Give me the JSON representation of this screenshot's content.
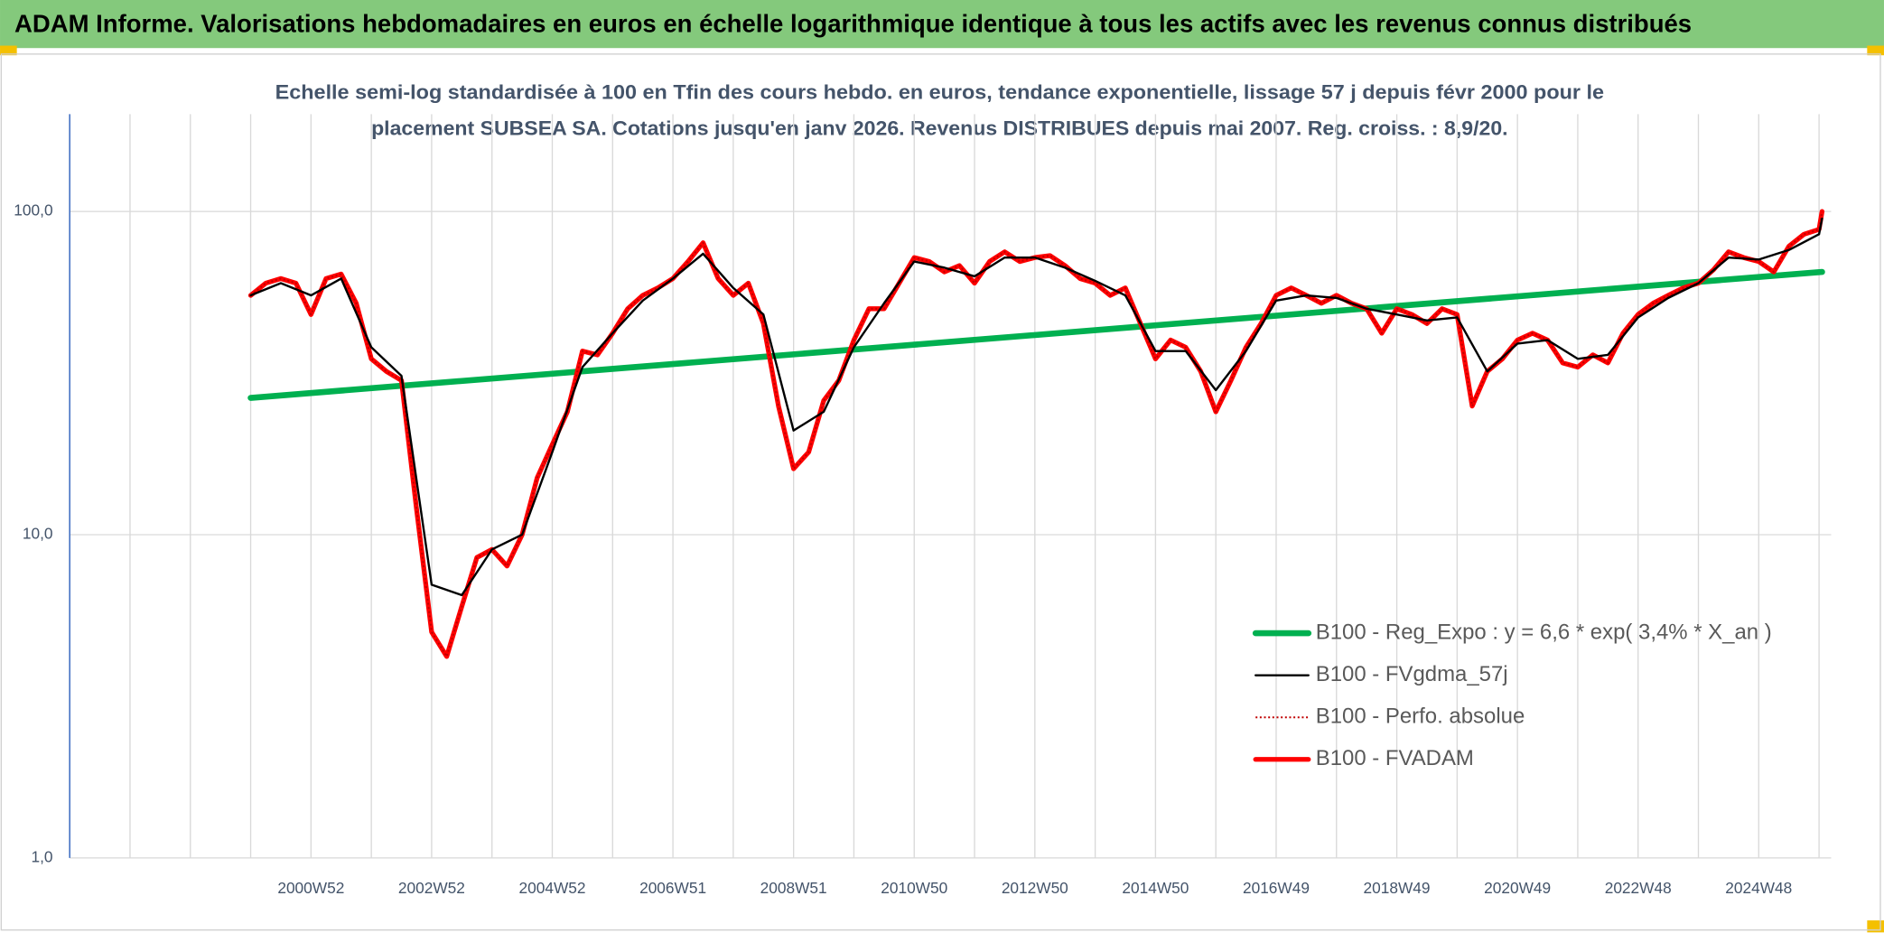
{
  "chart_data": {
    "type": "line",
    "title": "ADAM Informe. Valorisations hebdomadaires en euros en échelle logarithmique identique à tous les actifs avec les revenus connus distribués",
    "subtitle": [
      "Echelle semi-log standardisée à 100 en Tfin des cours hebdo. en euros, tendance exponentielle, lissage 57 j depuis févr 2000 pour le",
      "placement SUBSEA SA. Cotations jusqu'en janv 2026. Revenus DISTRIBUES depuis mai 2007. Reg. croiss. : 8,9/20."
    ],
    "y_log": true,
    "ylim": [
      1,
      200
    ],
    "yticks": [
      {
        "value": 1,
        "label": "1,0"
      },
      {
        "value": 10,
        "label": "10,0"
      },
      {
        "value": 100,
        "label": "100,0"
      }
    ],
    "xlim": [
      1997,
      2026.2
    ],
    "xticks": [
      {
        "value": 2001,
        "label": "2000W52"
      },
      {
        "value": 2003,
        "label": "2002W52"
      },
      {
        "value": 2005,
        "label": "2004W52"
      },
      {
        "value": 2007,
        "label": "2006W51"
      },
      {
        "value": 2009,
        "label": "2008W51"
      },
      {
        "value": 2011,
        "label": "2010W50"
      },
      {
        "value": 2013,
        "label": "2012W50"
      },
      {
        "value": 2015,
        "label": "2014W50"
      },
      {
        "value": 2017,
        "label": "2016W49"
      },
      {
        "value": 2019,
        "label": "2018W49"
      },
      {
        "value": 2021,
        "label": "2020W49"
      },
      {
        "value": 2023,
        "label": "2022W48"
      },
      {
        "value": 2025,
        "label": "2024W48"
      }
    ],
    "x_minor_ticks": [
      1998,
      1999,
      2000,
      2002,
      2004,
      2006,
      2008,
      2010,
      2012,
      2014,
      2016,
      2018,
      2020,
      2022,
      2024,
      2026
    ],
    "grid": true,
    "legend": "lower right",
    "x": [
      2000,
      2000.25,
      2000.5,
      2000.75,
      2001,
      2001.25,
      2001.5,
      2001.75,
      2002,
      2002.25,
      2002.5,
      2002.75,
      2003,
      2003.25,
      2003.5,
      2003.75,
      2004,
      2004.25,
      2004.5,
      2004.75,
      2005,
      2005.25,
      2005.5,
      2005.75,
      2006,
      2006.25,
      2006.5,
      2006.75,
      2007,
      2007.25,
      2007.5,
      2007.75,
      2008,
      2008.25,
      2008.5,
      2008.75,
      2009,
      2009.25,
      2009.5,
      2009.75,
      2010,
      2010.25,
      2010.5,
      2010.75,
      2011,
      2011.25,
      2011.5,
      2011.75,
      2012,
      2012.25,
      2012.5,
      2012.75,
      2013,
      2013.25,
      2013.5,
      2013.75,
      2014,
      2014.25,
      2014.5,
      2014.75,
      2015,
      2015.25,
      2015.5,
      2015.75,
      2016,
      2016.25,
      2016.5,
      2016.75,
      2017,
      2017.25,
      2017.5,
      2017.75,
      2018,
      2018.25,
      2018.5,
      2018.75,
      2019,
      2019.25,
      2019.5,
      2019.75,
      2020,
      2020.25,
      2020.5,
      2020.75,
      2021,
      2021.25,
      2021.5,
      2021.75,
      2022,
      2022.25,
      2022.5,
      2022.75,
      2023,
      2023.25,
      2023.5,
      2023.75,
      2024,
      2024.25,
      2024.5,
      2024.75,
      2025,
      2025.25,
      2025.5,
      2025.75,
      2026,
      2026.05
    ],
    "series": [
      {
        "name": "B100 - Reg_Expo : y = 6,6 * exp( 3,4% *  X_an )",
        "color": "#00b050",
        "x": [
          2000,
          2026.05
        ],
        "values": [
          26.5,
          65
        ]
      },
      {
        "name": "B100 - FVgdma_57j",
        "color": "#000000",
        "x": [
          2000,
          2000.5,
          2001,
          2001.5,
          2002,
          2002.5,
          2003,
          2003.5,
          2004,
          2004.5,
          2005,
          2005.5,
          2006,
          2006.5,
          2007,
          2007.5,
          2008,
          2008.5,
          2009,
          2009.5,
          2010,
          2010.5,
          2011,
          2011.5,
          2012,
          2012.5,
          2013,
          2013.5,
          2014,
          2014.5,
          2015,
          2015.5,
          2016,
          2016.5,
          2017,
          2017.5,
          2018,
          2018.5,
          2019,
          2019.5,
          2020,
          2020.5,
          2021,
          2021.5,
          2022,
          2022.5,
          2023,
          2023.5,
          2024,
          2024.5,
          2025,
          2025.5,
          2026,
          2026.05
        ],
        "values": [
          55,
          60,
          55,
          62,
          38,
          31,
          7,
          6.5,
          9,
          10,
          18,
          33,
          42,
          53,
          62,
          74,
          58,
          48,
          21,
          24,
          38,
          52,
          70,
          67,
          63,
          72,
          72,
          67,
          61,
          55,
          37,
          37,
          28,
          37,
          53,
          55,
          54,
          50,
          48,
          46,
          47,
          32,
          39,
          40,
          35,
          36,
          47,
          54,
          60,
          72,
          71,
          76,
          85,
          95
        ]
      },
      {
        "name": "B100 - Perfo. absolue",
        "color": "#c00000",
        "dash": "dotted",
        "values": [
          55,
          60,
          62,
          60,
          48,
          62,
          64,
          52,
          35,
          32,
          30,
          12,
          5,
          4.2,
          6,
          8.5,
          9,
          8,
          10,
          15,
          19,
          24,
          37,
          36,
          42,
          50,
          55,
          58,
          62,
          70,
          80,
          62,
          55,
          60,
          45,
          25,
          16,
          18,
          26,
          30,
          40,
          50,
          50,
          60,
          72,
          70,
          65,
          68,
          60,
          70,
          75,
          70,
          72,
          73,
          68,
          62,
          60,
          55,
          58,
          45,
          35,
          40,
          38,
          32,
          24,
          30,
          38,
          45,
          55,
          58,
          55,
          52,
          55,
          52,
          50,
          42,
          50,
          48,
          45,
          50,
          48,
          25,
          32,
          35,
          40,
          42,
          40,
          34,
          33,
          36,
          34,
          42,
          48,
          52,
          55,
          58,
          60,
          66,
          75,
          72,
          70,
          65,
          78,
          85,
          88,
          100
        ]
      },
      {
        "name": "B100 - FVADAM",
        "color": "#ff0000",
        "values": [
          55,
          60,
          62,
          60,
          48,
          62,
          64,
          52,
          35,
          32,
          30,
          12,
          5,
          4.2,
          6,
          8.5,
          9,
          8,
          10,
          15,
          19,
          24,
          37,
          36,
          42,
          50,
          55,
          58,
          62,
          70,
          80,
          62,
          55,
          60,
          45,
          25,
          16,
          18,
          26,
          30,
          40,
          50,
          50,
          60,
          72,
          70,
          65,
          68,
          60,
          70,
          75,
          70,
          72,
          73,
          68,
          62,
          60,
          55,
          58,
          45,
          35,
          40,
          38,
          32,
          24,
          30,
          38,
          45,
          55,
          58,
          55,
          52,
          55,
          52,
          50,
          42,
          50,
          48,
          45,
          50,
          48,
          25,
          32,
          35,
          40,
          42,
          40,
          34,
          33,
          36,
          34,
          42,
          48,
          52,
          55,
          58,
          60,
          66,
          75,
          72,
          70,
          65,
          78,
          85,
          88,
          100
        ]
      }
    ]
  }
}
